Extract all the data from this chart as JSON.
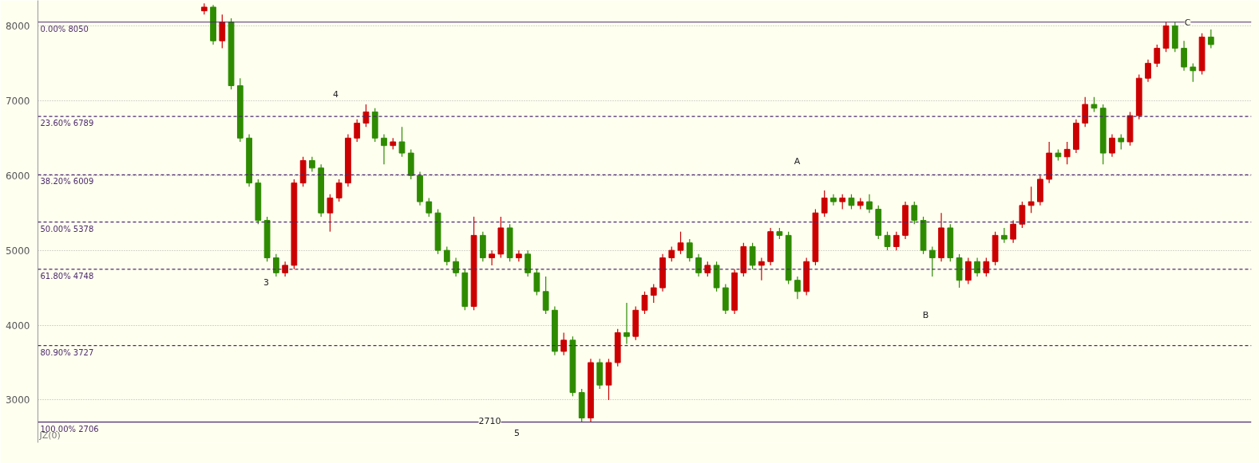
{
  "chart_data": {
    "type": "candlestick",
    "categories": [
      null,
      null,
      null,
      null,
      null,
      null,
      null,
      null,
      null,
      null,
      null,
      null,
      null,
      null,
      null,
      null,
      null,
      null,
      null,
      null,
      null,
      null,
      null,
      null,
      null,
      null,
      null,
      null,
      null,
      null,
      null,
      null,
      null,
      null,
      null,
      null,
      null,
      null,
      null,
      null,
      null,
      null,
      null,
      null,
      null,
      null,
      null,
      null,
      null,
      null,
      null,
      null,
      null,
      null,
      null,
      null,
      null,
      null,
      null,
      null,
      null,
      null,
      null,
      null,
      null,
      null,
      null,
      null,
      null,
      null,
      null,
      null,
      null,
      null,
      null,
      null,
      null,
      null,
      null,
      null,
      null,
      null,
      null,
      null,
      null,
      null,
      null,
      null,
      null,
      null,
      null,
      null,
      null,
      null,
      null,
      null,
      null,
      null,
      null,
      null,
      null,
      null,
      null,
      null,
      null,
      null,
      null,
      null,
      null,
      null,
      null,
      null,
      null,
      null,
      null,
      null,
      null,
      null,
      null,
      null,
      null,
      null,
      null,
      null,
      null,
      null,
      null,
      null,
      null,
      null,
      null,
      null,
      null,
      null,
      null
    ],
    "ohlc": [
      null,
      null,
      null,
      null,
      null,
      null,
      null,
      null,
      null,
      null,
      null,
      null,
      null,
      null,
      null,
      null,
      null,
      null,
      [
        8200,
        8300,
        8150,
        8250
      ],
      [
        8250,
        8280,
        7750,
        7800
      ],
      [
        7800,
        8150,
        7700,
        8050
      ],
      [
        8050,
        8100,
        7150,
        7200
      ],
      [
        7200,
        7300,
        6450,
        6500
      ],
      [
        6500,
        6550,
        5850,
        5900
      ],
      [
        5900,
        5950,
        5350,
        5400
      ],
      [
        5400,
        5450,
        4850,
        4900
      ],
      [
        4900,
        4950,
        4650,
        4700
      ],
      [
        4700,
        4850,
        4650,
        4800
      ],
      [
        4800,
        5950,
        4750,
        5900
      ],
      [
        5900,
        6250,
        5850,
        6200
      ],
      [
        6200,
        6250,
        6050,
        6100
      ],
      [
        6100,
        6150,
        5450,
        5500
      ],
      [
        5500,
        5750,
        5250,
        5700
      ],
      [
        5700,
        5950,
        5650,
        5900
      ],
      [
        5900,
        6550,
        5850,
        6500
      ],
      [
        6500,
        6750,
        6450,
        6700
      ],
      [
        6700,
        6950,
        6650,
        6850
      ],
      [
        6850,
        6900,
        6450,
        6500
      ],
      [
        6500,
        6550,
        6150,
        6400
      ],
      [
        6400,
        6500,
        6350,
        6450
      ],
      [
        6450,
        6650,
        6250,
        6300
      ],
      [
        6300,
        6350,
        5950,
        6000
      ],
      [
        6000,
        6050,
        5600,
        5650
      ],
      [
        5650,
        5700,
        5450,
        5500
      ],
      [
        5500,
        5550,
        4950,
        5000
      ],
      [
        5000,
        5050,
        4800,
        4850
      ],
      [
        4850,
        4900,
        4650,
        4700
      ],
      [
        4700,
        4750,
        4200,
        4250
      ],
      [
        4250,
        5450,
        4200,
        5200
      ],
      [
        5200,
        5250,
        4850,
        4900
      ],
      [
        4900,
        5000,
        4800,
        4950
      ],
      [
        4950,
        5450,
        4900,
        5300
      ],
      [
        5300,
        5350,
        4850,
        4900
      ],
      [
        4900,
        5000,
        4850,
        4950
      ],
      [
        4950,
        5000,
        4650,
        4700
      ],
      [
        4700,
        4750,
        4400,
        4450
      ],
      [
        4450,
        4650,
        4150,
        4200
      ],
      [
        4200,
        4250,
        3600,
        3650
      ],
      [
        3650,
        3900,
        3600,
        3800
      ],
      [
        3800,
        3850,
        3050,
        3100
      ],
      [
        3100,
        3150,
        2710,
        2760
      ],
      [
        2760,
        3550,
        2710,
        3500
      ],
      [
        3500,
        3550,
        3150,
        3200
      ],
      [
        3200,
        3550,
        3000,
        3500
      ],
      [
        3500,
        3950,
        3450,
        3900
      ],
      [
        3900,
        4300,
        3750,
        3850
      ],
      [
        3850,
        4250,
        3800,
        4200
      ],
      [
        4200,
        4450,
        4150,
        4400
      ],
      [
        4400,
        4550,
        4300,
        4500
      ],
      [
        4500,
        4950,
        4450,
        4900
      ],
      [
        4900,
        5050,
        4850,
        5000
      ],
      [
        5000,
        5250,
        4950,
        5100
      ],
      [
        5100,
        5150,
        4850,
        4900
      ],
      [
        4900,
        4950,
        4650,
        4700
      ],
      [
        4700,
        4850,
        4650,
        4800
      ],
      [
        4800,
        4850,
        4450,
        4500
      ],
      [
        4500,
        4550,
        4150,
        4200
      ],
      [
        4200,
        4750,
        4150,
        4700
      ],
      [
        4700,
        5100,
        4650,
        5050
      ],
      [
        5050,
        5100,
        4750,
        4800
      ],
      [
        4800,
        4900,
        4600,
        4850
      ],
      [
        4850,
        5300,
        4800,
        5250
      ],
      [
        5250,
        5300,
        5150,
        5200
      ],
      [
        5200,
        5250,
        4550,
        4600
      ],
      [
        4600,
        4650,
        4350,
        4450
      ],
      [
        4450,
        4900,
        4400,
        4850
      ],
      [
        4850,
        5550,
        4800,
        5500
      ],
      [
        5500,
        5800,
        5450,
        5700
      ],
      [
        5700,
        5750,
        5600,
        5650
      ],
      [
        5650,
        5750,
        5550,
        5700
      ],
      [
        5700,
        5750,
        5550,
        5600
      ],
      [
        5600,
        5700,
        5550,
        5650
      ],
      [
        5650,
        5750,
        5500,
        5550
      ],
      [
        5550,
        5600,
        5150,
        5200
      ],
      [
        5200,
        5250,
        5000,
        5050
      ],
      [
        5050,
        5250,
        5000,
        5200
      ],
      [
        5200,
        5650,
        5150,
        5600
      ],
      [
        5600,
        5650,
        5350,
        5400
      ],
      [
        5400,
        5450,
        4950,
        5000
      ],
      [
        5000,
        5050,
        4650,
        4900
      ],
      [
        4900,
        5500,
        4850,
        5300
      ],
      [
        5300,
        5350,
        4850,
        4900
      ],
      [
        4900,
        4950,
        4500,
        4600
      ],
      [
        4600,
        4900,
        4550,
        4850
      ],
      [
        4850,
        4900,
        4650,
        4700
      ],
      [
        4700,
        4900,
        4650,
        4850
      ],
      [
        4850,
        5250,
        4800,
        5200
      ],
      [
        5200,
        5300,
        5100,
        5150
      ],
      [
        5150,
        5400,
        5100,
        5350
      ],
      [
        5350,
        5650,
        5300,
        5600
      ],
      [
        5600,
        5850,
        5500,
        5650
      ],
      [
        5650,
        6000,
        5600,
        5950
      ],
      [
        5950,
        6450,
        5900,
        6300
      ],
      [
        6300,
        6350,
        6200,
        6250
      ],
      [
        6250,
        6450,
        6150,
        6350
      ],
      [
        6350,
        6750,
        6300,
        6700
      ],
      [
        6700,
        7050,
        6650,
        6950
      ],
      [
        6950,
        7050,
        6850,
        6900
      ],
      [
        6900,
        6950,
        6150,
        6300
      ],
      [
        6300,
        6550,
        6250,
        6500
      ],
      [
        6500,
        6550,
        6350,
        6450
      ],
      [
        6450,
        6850,
        6400,
        6800
      ],
      [
        6800,
        7350,
        6750,
        7300
      ],
      [
        7300,
        7550,
        7250,
        7500
      ],
      [
        7500,
        7750,
        7450,
        7700
      ],
      [
        7700,
        8050,
        7650,
        8000
      ],
      [
        8000,
        8050,
        7650,
        7700
      ],
      [
        7700,
        7800,
        7400,
        7450
      ],
      [
        7450,
        7500,
        7250,
        7400
      ],
      [
        7400,
        7900,
        7350,
        7850
      ],
      [
        7850,
        7950,
        7700,
        7750
      ],
      null,
      null,
      null,
      null
    ],
    "colors": [
      null,
      null,
      null,
      null,
      null,
      null,
      null,
      null,
      null,
      null,
      null,
      null,
      null,
      null,
      null,
      null,
      null,
      null,
      "#cc0000",
      "#2e8b00",
      "#cc0000",
      "#2e8b00",
      "#2e8b00",
      "#2e8b00",
      "#2e8b00",
      "#2e8b00",
      "#2e8b00",
      "#cc0000",
      "#cc0000",
      "#cc0000",
      "#2e8b00",
      "#2e8b00",
      "#cc0000",
      "#cc0000",
      "#cc0000",
      "#cc0000",
      "#cc0000",
      "#2e8b00",
      "#2e8b00",
      "#cc0000",
      "#2e8b00",
      "#2e8b00",
      "#2e8b00",
      "#2e8b00",
      "#2e8b00",
      "#2e8b00",
      "#2e8b00",
      "#2e8b00",
      "#cc0000",
      "#2e8b00",
      "#cc0000",
      "#cc0000",
      "#2e8b00",
      "#cc0000",
      "#2e8b00",
      "#2e8b00",
      "#2e8b00",
      "#2e8b00",
      "#cc0000",
      "#2e8b00",
      "#2e8b00",
      "#cc0000",
      "#2e8b00",
      "#cc0000",
      "#cc0000",
      "#2e8b00",
      "#cc0000",
      "#cc0000",
      "#cc0000",
      "#cc0000",
      "#cc0000",
      "#cc0000",
      "#2e8b00",
      "#2e8b00",
      "#cc0000",
      "#2e8b00",
      "#2e8b00",
      "#cc0000",
      "#cc0000",
      "#2e8b00",
      "#cc0000",
      "#cc0000",
      "#2e8b00",
      "#2e8b00",
      "#2e8b00",
      "#cc0000",
      "#cc0000",
      "#cc0000",
      "#2e8b00",
      "#cc0000",
      "#2e8b00",
      "#cc0000",
      "#2e8b00",
      "#2e8b00",
      "#2e8b00",
      "#cc0000",
      "#cc0000",
      "#2e8b00",
      "#2e8b00",
      "#2e8b00",
      "#cc0000",
      "#2e8b00",
      "#2e8b00",
      "#cc0000",
      "#2e8b00",
      "#cc0000",
      "#cc0000",
      "#2e8b00",
      "#cc0000",
      "#cc0000",
      "#cc0000",
      "#cc0000",
      "#cc0000",
      "#2e8b00",
      "#cc0000",
      "#cc0000",
      "#cc0000",
      "#2e8b00",
      "#2e8b00",
      "#cc0000",
      "#2e8b00",
      "#cc0000",
      "#cc0000",
      "#cc0000",
      "#cc0000",
      "#cc0000",
      "#2e8b00",
      "#2e8b00",
      "#2e8b00",
      "#cc0000",
      "#2e8b00",
      null,
      null,
      null,
      null
    ],
    "ylim": [
      2430,
      8340
    ],
    "yticks": [
      3000,
      4000,
      5000,
      6000,
      7000,
      8000
    ],
    "grid": "y",
    "tick_labels": "y",
    "ref_lines": [
      {
        "axis": "y",
        "value": 8050,
        "label": "0.00% 8050",
        "color": "#4b2a6b",
        "line_style": "solid"
      },
      {
        "axis": "y",
        "value": 6789,
        "label": "23.60% 6789",
        "color": "#4b2a6b",
        "line_style": "dashed"
      },
      {
        "axis": "y",
        "value": 6009,
        "label": "38.20% 6009",
        "color": "#4b2a6b",
        "line_style": "dashed"
      },
      {
        "axis": "y",
        "value": 5378,
        "label": "50.00% 5378",
        "color": "#4b2a6b",
        "line_style": "dashed"
      },
      {
        "axis": "y",
        "value": 4748,
        "label": "61.80% 4748",
        "color": "#4b2a6b",
        "line_style": "dashed"
      },
      {
        "axis": "y",
        "value": 3727,
        "label": "80.90% 3727",
        "color": "#4b2a6b",
        "line_style": "dashed"
      },
      {
        "axis": "y",
        "value": 2706,
        "label": "100.00% 2706",
        "color": "#4b2a6b",
        "line_style": "solid"
      }
    ],
    "annotations": [
      "3",
      "4",
      "2710",
      "5",
      "A",
      "B",
      "C",
      "JZ(0)"
    ]
  }
}
